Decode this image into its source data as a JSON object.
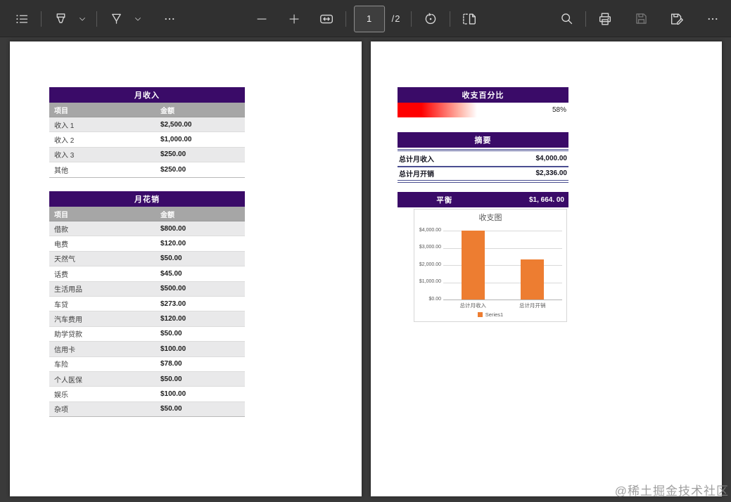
{
  "toolbar": {
    "page_input_value": "1",
    "page_count_label": "/2",
    "icons": {
      "left": [
        "toc-icon",
        "highlighter-icon",
        "chevron-down-icon",
        "draw-icon",
        "chevron-down-icon",
        "more-tools-icon"
      ],
      "center": [
        "zoom-out-icon",
        "zoom-in-icon",
        "fit-width-icon",
        "rotate-icon",
        "page-view-icon"
      ],
      "right": [
        "search-icon",
        "print-icon",
        "save-icon",
        "save-as-icon",
        "more-options-icon"
      ]
    }
  },
  "page1": {
    "income_table": {
      "title": "月收入",
      "columns": [
        "项目",
        "金额"
      ],
      "rows": [
        [
          "收入 1",
          "$2,500.00"
        ],
        [
          "收入 2",
          "$1,000.00"
        ],
        [
          "收入 3",
          "$250.00"
        ],
        [
          "其他",
          "$250.00"
        ]
      ]
    },
    "expense_table": {
      "title": "月花销",
      "columns": [
        "项目",
        "金额"
      ],
      "rows": [
        [
          "借款",
          "$800.00"
        ],
        [
          "电费",
          "$120.00"
        ],
        [
          "天然气",
          "$50.00"
        ],
        [
          "话费",
          "$45.00"
        ],
        [
          "生活用品",
          "$500.00"
        ],
        [
          "车贷",
          "$273.00"
        ],
        [
          "汽车费用",
          "$120.00"
        ],
        [
          "助学贷款",
          "$50.00"
        ],
        [
          "信用卡",
          "$100.00"
        ],
        [
          "车险",
          "$78.00"
        ],
        [
          "个人医保",
          "$50.00"
        ],
        [
          "娱乐",
          "$100.00"
        ],
        [
          "杂项",
          "$50.00"
        ]
      ]
    }
  },
  "page2": {
    "percent_section": {
      "title": "收支百分比",
      "percent": 58,
      "value_label": "58%",
      "bar_color": "#fe0000"
    },
    "summary_section": {
      "title": "摘要",
      "rows": [
        [
          "总计月收入",
          "$4,000.00"
        ],
        [
          "总计月开销",
          "$2,336.00"
        ]
      ]
    },
    "balance_section": {
      "title": "平衡",
      "value": "$1, 664. 00"
    }
  },
  "chart_data": {
    "type": "bar",
    "title": "收支图",
    "categories": [
      "总计月收入",
      "总计月开销"
    ],
    "values": [
      4000,
      2336
    ],
    "series": [
      {
        "name": "Series1",
        "values": [
          4000,
          2336
        ]
      }
    ],
    "yticks": [
      "$4,000.00",
      "$3,000.00",
      "$2,000.00",
      "$1,000.00",
      "$0.00"
    ],
    "ylim": [
      0,
      4000
    ],
    "legend": [
      "Series1"
    ],
    "legend_position": "bottom",
    "grid": true,
    "bar_color": "#ed7d31"
  },
  "watermark": "@稀土掘金技术社区",
  "colors": {
    "header_purple": "#3a0b68",
    "column_header_gray": "#a6a6a6",
    "row_alt_gray": "#e9e9ea",
    "summary_line_blue": "#4a4e91",
    "databar_red": "#fe0000",
    "chart_bar_orange": "#ed7d31"
  }
}
